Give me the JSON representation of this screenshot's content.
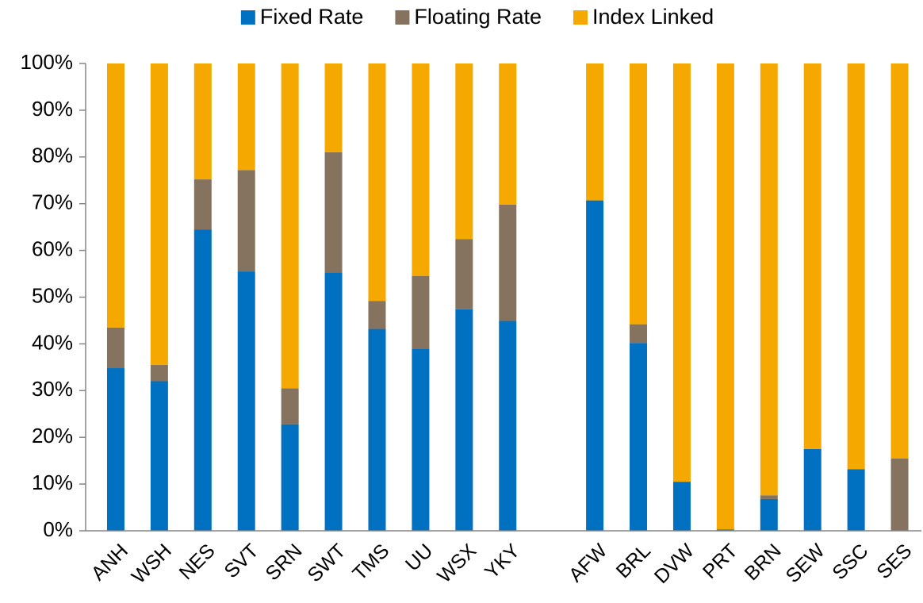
{
  "chart_data": {
    "type": "stacked_bar",
    "categories": [
      "ANH",
      "WSH",
      "NES",
      "SVT",
      "SRN",
      "SWT",
      "TMS",
      "UU",
      "WSX",
      "YKY",
      null,
      "AFW",
      "BRL",
      "DVW",
      "PRT",
      "BRN",
      "SEW",
      "SSC",
      "SES"
    ],
    "series": [
      {
        "name": "Fixed Rate",
        "color": "#0070c0",
        "values": [
          34.8,
          32,
          64.5,
          55.5,
          22.8,
          55.3,
          43.2,
          39,
          47.4,
          44.9,
          null,
          70.7,
          40.2,
          10.5,
          0.3,
          6.8,
          17.5,
          13.2,
          0
        ]
      },
      {
        "name": "Floating Rate",
        "color": "#857360",
        "values": [
          8.7,
          3.5,
          10.7,
          21.7,
          7.7,
          25.7,
          6,
          15.5,
          15,
          24.9,
          null,
          0,
          4,
          0,
          0,
          0.8,
          0,
          0,
          15.5
        ]
      },
      {
        "name": "Index Linked",
        "color": "#f5a800",
        "values": [
          56.5,
          64.5,
          24.8,
          22.8,
          69.5,
          19,
          50.8,
          45.5,
          37.6,
          30.2,
          null,
          29.3,
          55.8,
          89.5,
          99.7,
          92.4,
          82.5,
          86.8,
          84.5
        ]
      }
    ],
    "ylim": [
      0,
      100
    ],
    "yticks": [
      {
        "value": 0,
        "label": "0%"
      },
      {
        "value": 10,
        "label": "10%"
      },
      {
        "value": 20,
        "label": "20%"
      },
      {
        "value": 30,
        "label": "30%"
      },
      {
        "value": 40,
        "label": "40%"
      },
      {
        "value": 50,
        "label": "50%"
      },
      {
        "value": 60,
        "label": "60%"
      },
      {
        "value": 70,
        "label": "70%"
      },
      {
        "value": 80,
        "label": "80%"
      },
      {
        "value": 90,
        "label": "90%"
      },
      {
        "value": 100,
        "label": "100%"
      }
    ],
    "legend": "top"
  }
}
